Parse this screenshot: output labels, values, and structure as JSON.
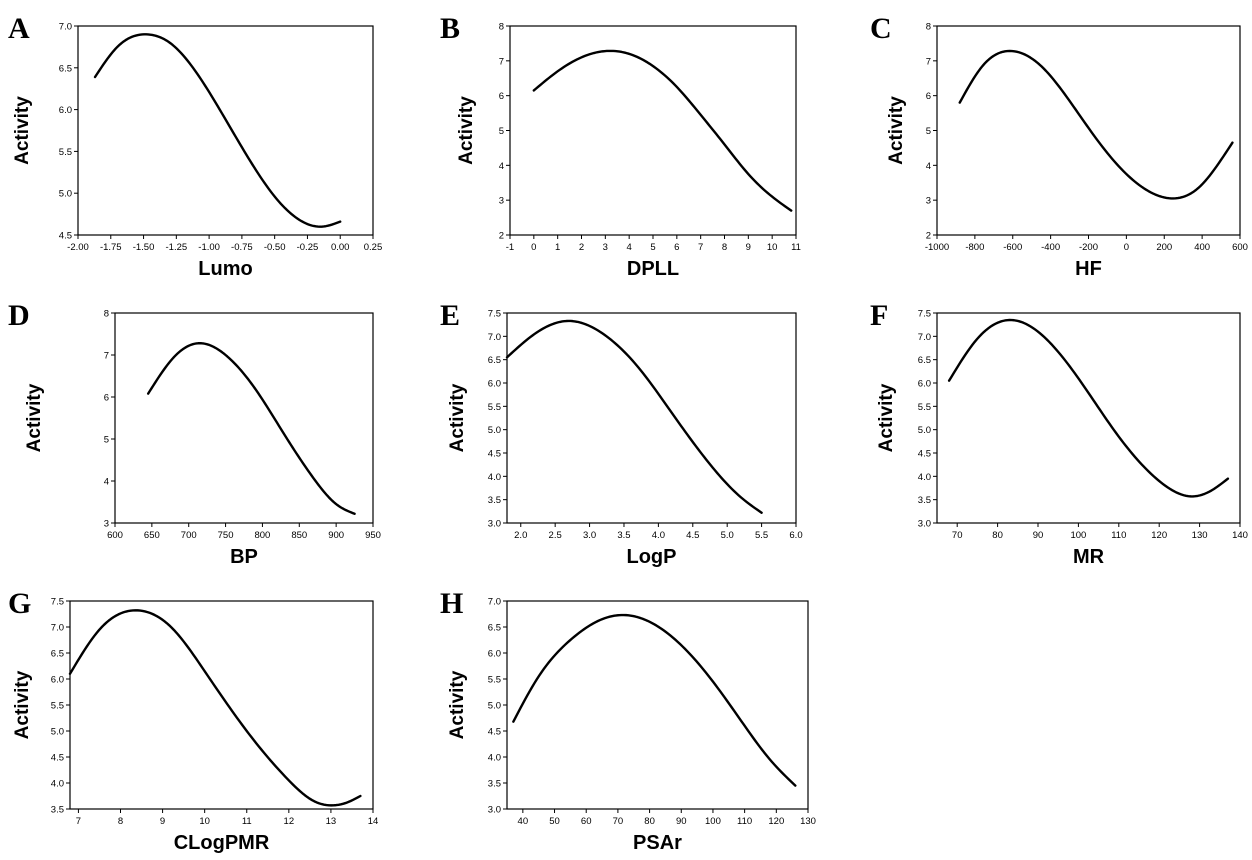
{
  "chart_data": [
    {
      "type": "line",
      "panel": "A",
      "xlabel": "Lumo",
      "ylabel": "Activity",
      "xlim": [
        -2.0,
        0.25
      ],
      "ylim": [
        4.5,
        7.0
      ],
      "xticks": [
        "-2.00",
        "-1.75",
        "-1.50",
        "-1.25",
        "-1.00",
        "-0.75",
        "-0.50",
        "-0.25",
        "0.00",
        "0.25"
      ],
      "yticks": [
        "4.5",
        "5.0",
        "5.5",
        "6.0",
        "6.5",
        "7.0"
      ],
      "x": [
        -1.87,
        -1.7,
        -1.48,
        -1.3,
        -1.1,
        -0.9,
        -0.7,
        -0.5,
        -0.3,
        -0.14,
        0.0
      ],
      "y": [
        6.39,
        6.75,
        6.9,
        6.8,
        6.45,
        5.95,
        5.42,
        4.96,
        4.67,
        4.6,
        4.66
      ]
    },
    {
      "type": "line",
      "panel": "B",
      "xlabel": "DPLL",
      "ylabel": "Activity",
      "xlim": [
        -1,
        11
      ],
      "ylim": [
        2,
        8
      ],
      "xticks": [
        "-1",
        "0",
        "1",
        "2",
        "3",
        "4",
        "5",
        "6",
        "7",
        "8",
        "9",
        "10",
        "11"
      ],
      "yticks": [
        "2",
        "3",
        "4",
        "5",
        "6",
        "7",
        "8"
      ],
      "x": [
        0.0,
        1.0,
        2.0,
        3.0,
        4.0,
        5.0,
        6.0,
        7.0,
        8.0,
        9.0,
        10.0,
        10.8
      ],
      "y": [
        6.15,
        6.7,
        7.1,
        7.28,
        7.2,
        6.85,
        6.25,
        5.45,
        4.6,
        3.75,
        3.1,
        2.7
      ]
    },
    {
      "type": "line",
      "panel": "C",
      "xlabel": "HF",
      "ylabel": "Activity",
      "xlim": [
        -1000,
        600
      ],
      "ylim": [
        2,
        8
      ],
      "xticks": [
        "-1000",
        "-800",
        "-600",
        "-400",
        "-200",
        "0",
        "200",
        "400",
        "600"
      ],
      "yticks": [
        "2",
        "3",
        "4",
        "5",
        "6",
        "7",
        "8"
      ],
      "x": [
        -880,
        -760,
        -600,
        -450,
        -300,
        -150,
        0,
        120,
        250,
        380,
        480,
        560
      ],
      "y": [
        5.8,
        6.85,
        7.28,
        6.85,
        5.85,
        4.7,
        3.75,
        3.25,
        3.05,
        3.35,
        4.0,
        4.65
      ]
    },
    {
      "type": "line",
      "panel": "D",
      "xlabel": "BP",
      "ylabel": "Activity",
      "xlim": [
        600,
        950
      ],
      "ylim": [
        3,
        8
      ],
      "xticks": [
        "600",
        "650",
        "700",
        "750",
        "800",
        "850",
        "900",
        "950"
      ],
      "yticks": [
        "3",
        "4",
        "5",
        "6",
        "7",
        "8"
      ],
      "x": [
        645,
        680,
        713,
        750,
        790,
        830,
        870,
        900,
        925
      ],
      "y": [
        6.08,
        6.95,
        7.28,
        7.0,
        6.2,
        5.1,
        4.05,
        3.45,
        3.22
      ]
    },
    {
      "type": "line",
      "panel": "E",
      "xlabel": "LogP",
      "ylabel": "Activity",
      "xlim": [
        1.8,
        6.0
      ],
      "ylim": [
        3.0,
        7.5
      ],
      "xticks": [
        "2.0",
        "2.5",
        "3.0",
        "3.5",
        "4.0",
        "4.5",
        "5.0",
        "5.5",
        "6.0"
      ],
      "yticks": [
        "3.0",
        "3.5",
        "4.0",
        "4.5",
        "5.0",
        "5.5",
        "6.0",
        "6.5",
        "7.0",
        "7.5"
      ],
      "x": [
        1.8,
        2.2,
        2.7,
        3.2,
        3.7,
        4.2,
        4.7,
        5.2,
        5.5
      ],
      "y": [
        6.55,
        7.05,
        7.33,
        7.05,
        6.35,
        5.35,
        4.35,
        3.55,
        3.22
      ]
    },
    {
      "type": "line",
      "panel": "F",
      "xlabel": "MR",
      "ylabel": "Activity",
      "xlim": [
        65,
        140
      ],
      "ylim": [
        3.0,
        7.5
      ],
      "xticks": [
        "70",
        "80",
        "90",
        "100",
        "110",
        "120",
        "130",
        "140"
      ],
      "yticks": [
        "3.0",
        "3.5",
        "4.0",
        "4.5",
        "5.0",
        "5.5",
        "6.0",
        "6.5",
        "7.0",
        "7.5"
      ],
      "x": [
        68,
        75,
        83,
        90,
        100,
        110,
        120,
        128,
        133,
        137
      ],
      "y": [
        6.05,
        6.95,
        7.35,
        7.1,
        6.1,
        4.85,
        3.9,
        3.57,
        3.7,
        3.95
      ]
    },
    {
      "type": "line",
      "panel": "G",
      "xlabel": "CLogPMR",
      "ylabel": "Activity",
      "xlim": [
        6.8,
        14
      ],
      "ylim": [
        3.5,
        7.5
      ],
      "xticks": [
        "7",
        "8",
        "9",
        "10",
        "11",
        "12",
        "13",
        "14"
      ],
      "yticks": [
        "3.5",
        "4.0",
        "4.5",
        "5.0",
        "5.5",
        "6.0",
        "6.5",
        "7.0",
        "7.5"
      ],
      "x": [
        6.8,
        7.5,
        8.4,
        9.2,
        10.0,
        11.0,
        12.0,
        12.6,
        13.0,
        13.4,
        13.7
      ],
      "y": [
        6.1,
        6.95,
        7.32,
        7.0,
        6.15,
        5.0,
        4.05,
        3.65,
        3.57,
        3.63,
        3.75
      ]
    },
    {
      "type": "line",
      "panel": "H",
      "xlabel": "PSAr",
      "ylabel": "Activity",
      "xlim": [
        35,
        130
      ],
      "ylim": [
        3.0,
        7.0
      ],
      "xticks": [
        "40",
        "50",
        "60",
        "70",
        "80",
        "90",
        "100",
        "110",
        "120",
        "130"
      ],
      "yticks": [
        "3.0",
        "3.5",
        "4.0",
        "4.5",
        "5.0",
        "5.5",
        "6.0",
        "6.5",
        "7.0"
      ],
      "x": [
        37,
        45,
        55,
        65,
        72,
        80,
        90,
        100,
        110,
        118,
        126
      ],
      "y": [
        4.68,
        5.55,
        6.25,
        6.65,
        6.73,
        6.6,
        6.15,
        5.45,
        4.6,
        3.95,
        3.45
      ]
    }
  ]
}
